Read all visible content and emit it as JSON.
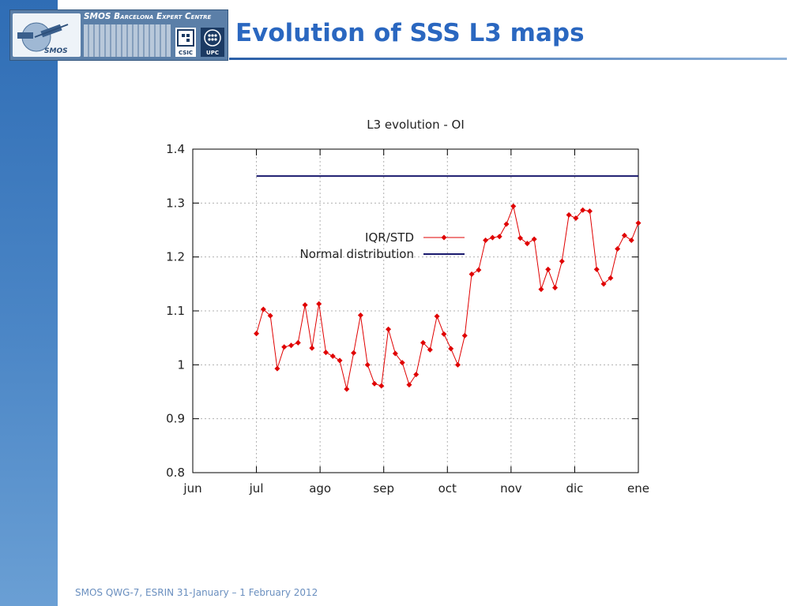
{
  "slide": {
    "title": "Evolution of SSS L3 maps",
    "footer": "SMOS QWG-7, ESRIN 31-January – 1 February 2012"
  },
  "logo": {
    "name": "SMOS Barcelona Expert Centre",
    "satellite_label": "SMOS",
    "partner_1": "CSIC",
    "partner_2": "UPC"
  },
  "colors": {
    "accent": "#2a67c0",
    "left_band": "#3a78bd",
    "series_iqr": "#e00000",
    "series_normal": "#1a1a6e"
  },
  "chart_data": {
    "type": "line",
    "title": "L3 evolution - OI",
    "xlabel": "",
    "ylabel": "",
    "ylim": [
      0.8,
      1.4
    ],
    "yticks": [
      "0.8",
      "0.9",
      "1",
      "1.1",
      "1.2",
      "1.3",
      "1.4"
    ],
    "xticks": [
      "jun",
      "jul",
      "ago",
      "sep",
      "oct",
      "nov",
      "dic",
      "ene"
    ],
    "grid": true,
    "legend_position": "top-left inside",
    "series": [
      {
        "name": "IQR/STD",
        "marker": "diamond",
        "values": [
          1.058,
          1.103,
          1.091,
          0.993,
          1.033,
          1.036,
          1.041,
          1.111,
          1.031,
          1.113,
          1.023,
          1.016,
          1.008,
          0.955,
          1.022,
          1.092,
          1.0,
          0.965,
          0.961,
          1.066,
          1.021,
          1.004,
          0.963,
          0.982,
          1.041,
          1.028,
          1.09,
          1.057,
          1.03,
          1.0,
          1.054,
          1.168,
          1.176,
          1.231,
          1.236,
          1.238,
          1.261,
          1.294,
          1.235,
          1.225,
          1.233,
          1.14,
          1.177,
          1.143,
          1.192,
          1.278,
          1.272,
          1.287,
          1.285,
          1.177,
          1.15,
          1.161,
          1.215,
          1.24,
          1.231,
          1.263
        ]
      },
      {
        "name": "Normal distribution",
        "values": [
          1.35,
          1.35
        ]
      }
    ]
  }
}
